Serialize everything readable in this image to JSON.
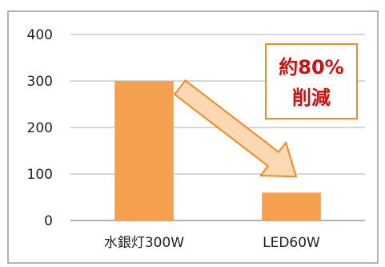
{
  "chart_data": {
    "type": "bar",
    "categories": [
      "水銀灯300W",
      "LED60W"
    ],
    "values": [
      300,
      60
    ],
    "ylim": [
      0,
      400
    ],
    "yticks": [
      0,
      100,
      200,
      300,
      400
    ],
    "grid": true,
    "title": "",
    "xlabel": "",
    "ylabel": "",
    "annotation": {
      "line1": "約80%",
      "line2": "削減"
    },
    "colors": {
      "bar": "#f5a04f",
      "gridline": "#bfbfbf",
      "arrow_fill": "#fcd8b3",
      "arrow_stroke": "#f08a24",
      "callout_border": "#f08a24",
      "callout_text": "#cc1111"
    }
  }
}
